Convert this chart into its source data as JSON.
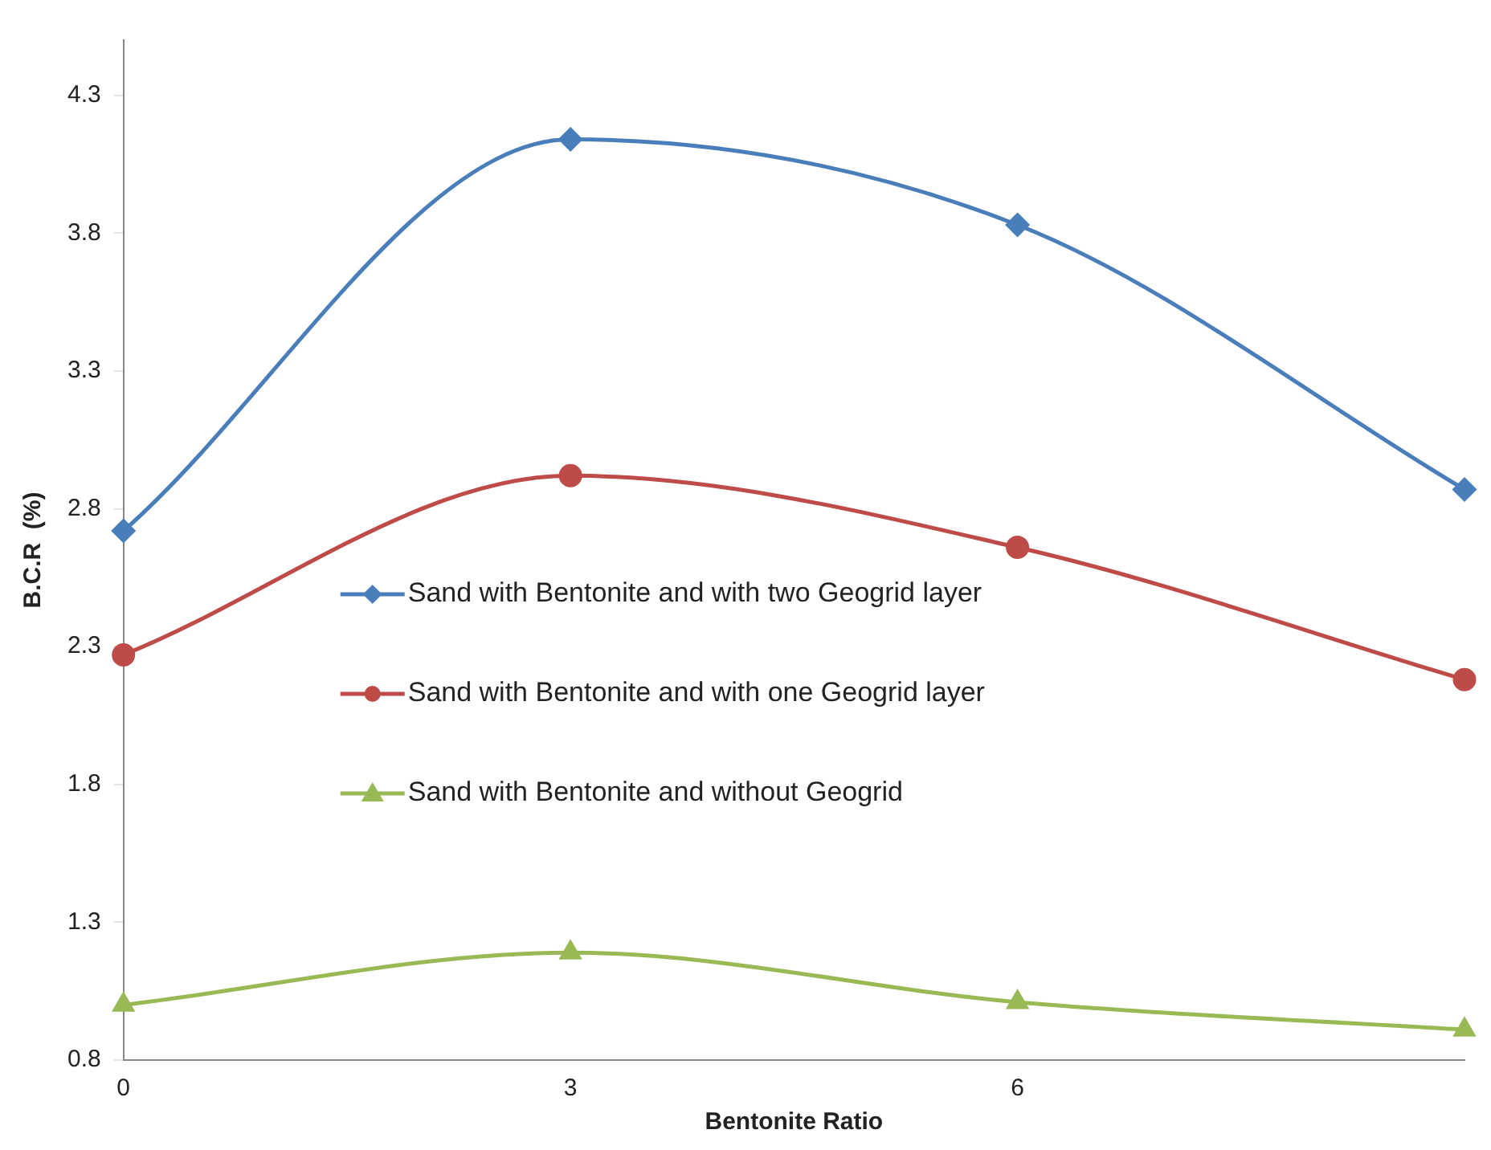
{
  "chart_data": {
    "type": "line",
    "xlabel": "Bentonite Ratio",
    "ylabel": "B.C.R  (%)",
    "x": [
      0,
      3,
      6,
      9
    ],
    "xlim": [
      0,
      9
    ],
    "xticks": [
      0,
      3,
      6
    ],
    "ylim": [
      0.8,
      4.5
    ],
    "yticks": [
      0.8,
      1.3,
      1.8,
      2.3,
      2.8,
      3.3,
      3.8,
      4.3
    ],
    "grid": false,
    "legend": "left",
    "series": [
      {
        "name": "Sand with Bentonite and with two Geogrid layer",
        "color": "#4a7ebb",
        "marker": "diamond",
        "values": [
          2.72,
          4.14,
          3.83,
          2.87
        ]
      },
      {
        "name": "Sand with Bentonite and with one Geogrid layer",
        "color": "#be4b48",
        "marker": "circle",
        "values": [
          2.27,
          2.92,
          2.66,
          2.18
        ]
      },
      {
        "name": "Sand with Bentonite and without Geogrid",
        "color": "#98b954",
        "marker": "triangle",
        "values": [
          1.0,
          1.19,
          1.01,
          0.91
        ]
      }
    ]
  }
}
